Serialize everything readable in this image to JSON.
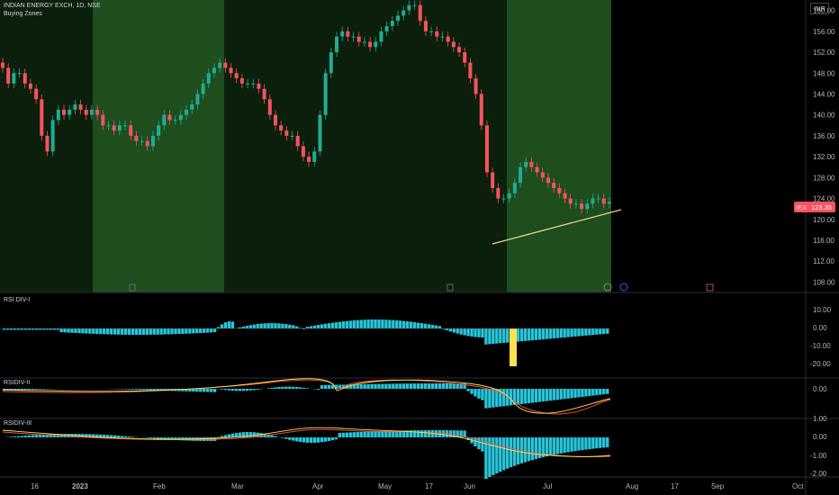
{
  "header": {
    "symbol_line": "INDIAN ENERGY EXCH, 1D, NSE",
    "indicator_line": "Buying Zones",
    "currency": "INR"
  },
  "price_axis": {
    "ticks": [
      "160.00",
      "156.00",
      "152.00",
      "148.00",
      "144.00",
      "140.00",
      "136.00",
      "132.00",
      "128.00",
      "124.00",
      "120.00",
      "116.00",
      "112.00",
      "108.00"
    ],
    "current_badge": "123.35",
    "badge_prefix": "IEX"
  },
  "time_axis": {
    "labels": [
      "16",
      "2023",
      "Feb",
      "Mar",
      "Apr",
      "May",
      "17",
      "Jun",
      "Jul",
      "Aug",
      "17",
      "Sep",
      "Oct"
    ]
  },
  "panes": {
    "rsi1": {
      "title": "RSI DIV-I",
      "ticks": [
        "10.00",
        "0.00",
        "-10.00",
        "-20.00"
      ]
    },
    "rsi2": {
      "title": "RSIDIV-II",
      "ticks": [
        "0.00"
      ]
    },
    "rsi3": {
      "title": "RSIDIV-III",
      "ticks": [
        "1.00",
        "0.00",
        "-1.00",
        "-2.00"
      ]
    }
  },
  "colors": {
    "bg": "#000000",
    "zone_green": "#1e4d1e",
    "zone_dark": "#0c1f0c",
    "up": "#22ab94",
    "down": "#f7525f",
    "hist": "#26c6da",
    "signal_red": "#ef5350",
    "signal_yellow": "#ffe14d",
    "trendline": "#f5d08a"
  },
  "chart_data": {
    "type": "candlestick",
    "title": "INDIAN ENERGY EXCH, 1D, NSE",
    "y_range": [
      106,
      162
    ],
    "x_labels": [
      "16",
      "2023",
      "Feb",
      "Mar",
      "Apr",
      "May",
      "17",
      "Jun",
      "Jul",
      "Aug",
      "17",
      "Sep",
      "Oct"
    ],
    "closes_approx": [
      149,
      146,
      148,
      148,
      146,
      145,
      143,
      136,
      133,
      139,
      141,
      140,
      141,
      142,
      141,
      140,
      141,
      140,
      138,
      138,
      137,
      138,
      138,
      136,
      135,
      135,
      134,
      136,
      138,
      140,
      139,
      139,
      140,
      141,
      142,
      144,
      146,
      148,
      149,
      150,
      149,
      148,
      147,
      146,
      146,
      146,
      145,
      143,
      140,
      138,
      137,
      136,
      136,
      134,
      132,
      131,
      133,
      140,
      148,
      152,
      155,
      156,
      155,
      155,
      154,
      154,
      153,
      154,
      156,
      157,
      158,
      159,
      160,
      161,
      161,
      158,
      156,
      156,
      155,
      155,
      154,
      153,
      152,
      150,
      147,
      144,
      138,
      129,
      126,
      124,
      124,
      125,
      127,
      130,
      131,
      130,
      129,
      128,
      127,
      126,
      125,
      124,
      123,
      123,
      122,
      123,
      124,
      124,
      123,
      123.35
    ],
    "trendline": {
      "from": [
        0.608,
        116.0
      ],
      "to": [
        0.76,
        121.0
      ]
    },
    "buying_zones": [
      [
        "Jan",
        "Mar"
      ],
      [
        "Jun",
        "Jul"
      ]
    ]
  }
}
